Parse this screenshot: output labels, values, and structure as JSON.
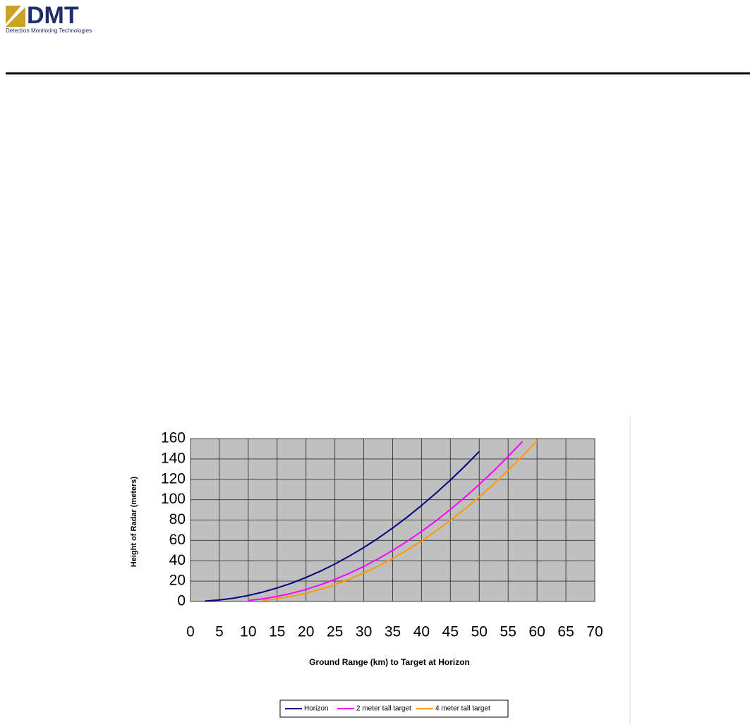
{
  "header": {
    "logo_text": "DMT",
    "logo_subtitle": "Detection Monitoring Technologies"
  },
  "chart_data": {
    "type": "line",
    "x_label": "Ground Range (km) to Target at Horizon",
    "y_label": "Height of Radar (meters)",
    "x": [
      2.5,
      5,
      7.5,
      10,
      12.5,
      15,
      17.5,
      20,
      22.5,
      25,
      27.5,
      30,
      32.5,
      35,
      37.5,
      40,
      42.5,
      45,
      47.5,
      50,
      52.5,
      55,
      57.5,
      60
    ],
    "series": [
      {
        "name": "Horizon",
        "color": "#000080",
        "values": [
          0.4,
          1.5,
          3.3,
          5.9,
          9.2,
          13.3,
          18.0,
          23.6,
          29.8,
          36.8,
          44.6,
          53.0,
          62.2,
          72.2,
          82.8,
          94.3,
          106.4,
          119.3,
          132.9,
          147.3,
          null,
          null,
          null,
          null
        ]
      },
      {
        "name": "2 meter tall target",
        "color": "#ff00ff",
        "values": [
          null,
          null,
          null,
          1.0,
          2.6,
          5.0,
          8.0,
          11.8,
          16.4,
          21.7,
          27.7,
          34.4,
          41.9,
          50.1,
          59.1,
          68.8,
          79.2,
          90.4,
          102.3,
          115.0,
          128.3,
          142.5,
          157.3,
          null
        ]
      },
      {
        "name": "4 meter tall target",
        "color": "#ff9900",
        "values": [
          null,
          null,
          null,
          null,
          1.1,
          2.7,
          5.1,
          8.1,
          12.0,
          16.5,
          21.9,
          27.9,
          34.7,
          42.2,
          50.4,
          59.4,
          69.2,
          79.6,
          90.8,
          102.7,
          115.4,
          128.8,
          143.0,
          157.8
        ]
      }
    ],
    "xlim": [
      0,
      70
    ],
    "xticks": [
      0,
      5,
      10,
      15,
      20,
      25,
      30,
      35,
      40,
      45,
      50,
      55,
      60,
      65,
      70
    ],
    "ylim": [
      0,
      160
    ],
    "yticks": [
      0,
      20,
      40,
      60,
      80,
      100,
      120,
      140,
      160
    ],
    "grid": true,
    "legend": "bottom",
    "plot_background": "#c0c0c0"
  }
}
